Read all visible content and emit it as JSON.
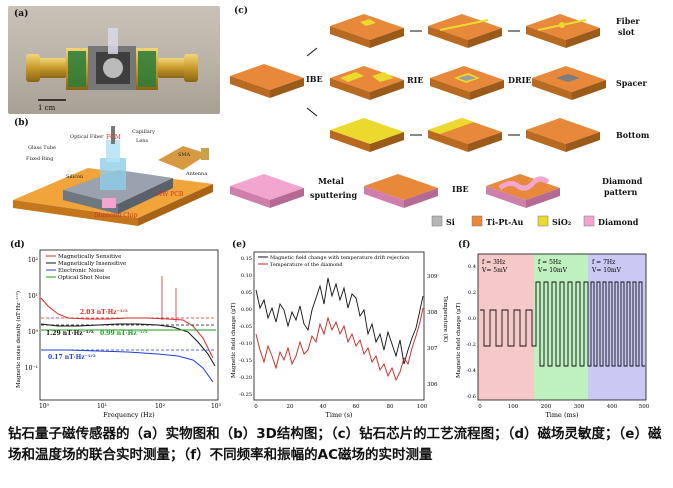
{
  "panel_a": {
    "label": "(a)",
    "scale": "1 cm"
  },
  "panel_b": {
    "label": "(b)",
    "parts": {
      "optical_fiber": "Optical Fiber",
      "glass_tube": "Glass Tube",
      "fixed_ring": "Fixed Ring",
      "fcm": "FCM",
      "capillary": "Capillary",
      "lens": "Lens",
      "sma": "SMA",
      "silicon": "Silicon",
      "antenna": "Antenna",
      "mw_pcb": "MW PCB",
      "diamond_chip": "Diamond Chip"
    }
  },
  "panel_c": {
    "label": "(c)",
    "steps": {
      "ibe": "IBE",
      "rie": "RIE",
      "drie": "DRIE",
      "ibe2": "IBE",
      "metal": "Metal",
      "sputtering": "sputtering"
    },
    "rows": {
      "fiber_slot_1": "Fiber",
      "fiber_slot_2": "slot",
      "spacer": "Spacer",
      "bottom": "Bottom",
      "diamond_pattern_1": "Diamond",
      "diamond_pattern_2": "pattern"
    },
    "legend": {
      "si": "Si",
      "tipta": "Ti-Pt-Au",
      "sio2": "SiO₂",
      "diamond": "Diamond"
    },
    "colors": {
      "si": "#b5b5b5",
      "tipta": "#e8883a",
      "sio2": "#ecd92e",
      "diamond": "#f2a6cf"
    }
  },
  "panel_d": {
    "label": "(d)",
    "ylabel": "Magnetic noise density (nT·Hz⁻¹ᐟ²)",
    "xlabel": "Frequency (Hz)",
    "legend": [
      "Magnetically Sensitive",
      "Magnetically Insensitive",
      "Electronic Noise",
      "Optical Shot Noise"
    ],
    "annotations": [
      "2.03 nT·Hz⁻¹ᐟ²",
      "1.29 nT·Hz⁻¹ᐟ²",
      "0.99 nT·Hz⁻¹ᐟ²",
      "0.17 nT·Hz⁻¹ᐟ²"
    ],
    "xticks": [
      "10⁰",
      "10¹",
      "10²",
      "10³"
    ],
    "yticks": [
      "10²",
      "10¹",
      "10⁰",
      "10⁻¹"
    ]
  },
  "panel_e": {
    "label": "(e)",
    "ylabel": "Magnetic field change (μT)",
    "y2label": "Temperature (K)",
    "xlabel": "Time (s)",
    "legend": [
      "Magnetic field change with temperature drift rejection",
      "Temperature of the diamond"
    ],
    "xticks": [
      "0",
      "20",
      "40",
      "60",
      "80",
      "100"
    ],
    "yticks": [
      "0.15",
      "0.10",
      "0.05",
      "0.00",
      "-0.05",
      "-0.10",
      "-0.15",
      "-0.20",
      "-0.25"
    ],
    "y2ticks": [
      "309",
      "308",
      "307",
      "306"
    ]
  },
  "panel_f": {
    "label": "(f)",
    "ylabel": "Magnetic field change (μT)",
    "xlabel": "Time (ms)",
    "segments": [
      {
        "f": "f = 3Hz",
        "v": "V= 5mV",
        "color": "#f6c9c9"
      },
      {
        "f": "f = 5Hz",
        "v": "V= 10mV",
        "color": "#bff0bf"
      },
      {
        "f": "f = 7Hz",
        "v": "V= 10mV",
        "color": "#c9c9f4"
      }
    ],
    "xticks": [
      "0",
      "100",
      "200",
      "300",
      "400",
      "500"
    ],
    "yticks": [
      "0.4",
      "0.2",
      "0.0",
      "-0.2",
      "-0.4",
      "-0.6"
    ]
  },
  "caption": "钻石量子磁传感器的（a）实物图和（b）3D结构图；（c）钻石芯片的工艺流程图；（d）磁场灵敏度；（e）磁场和温度场的联合实时测量；（f）不同频率和振幅的AC磁场的实时测量"
}
